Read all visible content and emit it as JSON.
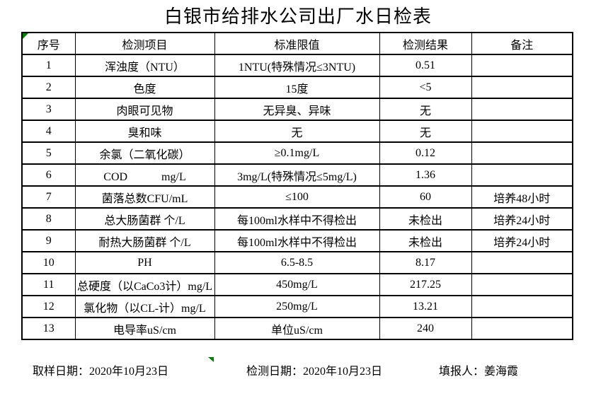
{
  "title": "白银市给排水公司出厂水日检表",
  "colors": {
    "background": "#ffffff",
    "text": "#000000",
    "border": "#000000",
    "marker_green": "#008000"
  },
  "table": {
    "headers": [
      "序号",
      "检测项目",
      "标准限值",
      "检测结果",
      "备注"
    ],
    "column_keys": [
      "no",
      "item",
      "limit",
      "result",
      "note"
    ],
    "rows": [
      {
        "no": "1",
        "item": "浑浊度（NTU）",
        "limit": "1NTU(特殊情况≤3NTU)",
        "result": "0.51",
        "note": ""
      },
      {
        "no": "2",
        "item": "色度",
        "limit": "15度",
        "result": "<5",
        "note": ""
      },
      {
        "no": "3",
        "item": "肉眼可见物",
        "limit": "无异臭、异味",
        "result": "无",
        "note": ""
      },
      {
        "no": "4",
        "item": "臭和味",
        "limit": "无",
        "result": "无",
        "note": ""
      },
      {
        "no": "5",
        "item": "余氯（二氧化碳）",
        "limit": "≥0.1mg/L",
        "result": "0.12",
        "note": ""
      },
      {
        "no": "6",
        "item": "COD　　　mg/L",
        "limit": "3mg/L(特殊情况≤5mg/L)",
        "result": "1.36",
        "note": ""
      },
      {
        "no": "7",
        "item": "菌落总数CFU/mL",
        "limit": "≤100",
        "result": "60",
        "note": "培养48小时"
      },
      {
        "no": "8",
        "item": "总大肠菌群 个/L",
        "limit": "每100ml水样中不得检出",
        "result": "未检出",
        "note": "培养24小时"
      },
      {
        "no": "9",
        "item": "耐热大肠菌群 个/L",
        "limit": "每100ml水样中不得检出",
        "result": "未检出",
        "note": "培养24小时"
      },
      {
        "no": "10",
        "item": "PH",
        "limit": "6.5-8.5",
        "result": "8.17",
        "note": ""
      },
      {
        "no": "11",
        "item": "总硬度（以CaCo3计）mg/L",
        "limit": "450mg/L",
        "result": "217.25",
        "note": ""
      },
      {
        "no": "12",
        "item": "氯化物（以CL-计）mg/L",
        "limit": "250mg/L",
        "result": "13.21",
        "note": ""
      },
      {
        "no": "13",
        "item": "电导率uS/cm",
        "limit": "单位uS/cm",
        "result": "240",
        "note": ""
      }
    ]
  },
  "footer": {
    "sample_date": "取样日期：2020年10月23日",
    "test_date": "检测日期：2020年10月23日",
    "reporter": "填报人：姜海霞"
  }
}
